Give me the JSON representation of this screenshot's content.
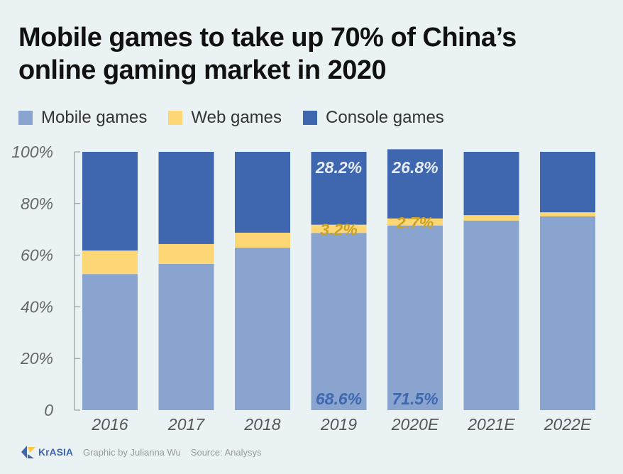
{
  "chart_data": {
    "type": "bar",
    "stacked": true,
    "title": "Mobile games to take up 70% of China’s online gaming market in 2020",
    "categories": [
      "2016",
      "2017",
      "2018",
      "2019",
      "2020E",
      "2021E",
      "2022E"
    ],
    "series": [
      {
        "name": "Mobile games",
        "color": "#8aa4d0",
        "values": [
          52.7,
          56.6,
          62.9,
          68.6,
          71.5,
          73.4,
          75.0
        ]
      },
      {
        "name": "Web games",
        "color": "#fdd775",
        "values": [
          9.1,
          7.7,
          5.8,
          3.2,
          2.7,
          2.1,
          1.6
        ]
      },
      {
        "name": "Console games",
        "color": "#3f67b0",
        "values": [
          38.2,
          35.7,
          31.3,
          28.2,
          26.8,
          24.5,
          23.4
        ]
      }
    ],
    "data_labels": [
      {
        "category": "2019",
        "series": "Console games",
        "text": "28.2%"
      },
      {
        "category": "2020E",
        "series": "Console games",
        "text": "26.8%"
      },
      {
        "category": "2019",
        "series": "Web games",
        "text": "3.2%"
      },
      {
        "category": "2020E",
        "series": "Web games",
        "text": "2.7%"
      },
      {
        "category": "2019",
        "series": "Mobile games",
        "text": "68.6%"
      },
      {
        "category": "2020E",
        "series": "Mobile games",
        "text": "71.5%"
      }
    ],
    "yticks": [
      "0",
      "20%",
      "40%",
      "60%",
      "80%",
      "100%"
    ],
    "ylim": [
      0,
      100
    ],
    "legend": "top-left",
    "grid": false
  },
  "title_lines": [
    "Mobile games to take up 70% of China’s",
    "online gaming market in 2020"
  ],
  "footer": {
    "brand": "KrASIA",
    "credit": "Graphic by Julianna Wu",
    "source": "Source: Analysys"
  }
}
